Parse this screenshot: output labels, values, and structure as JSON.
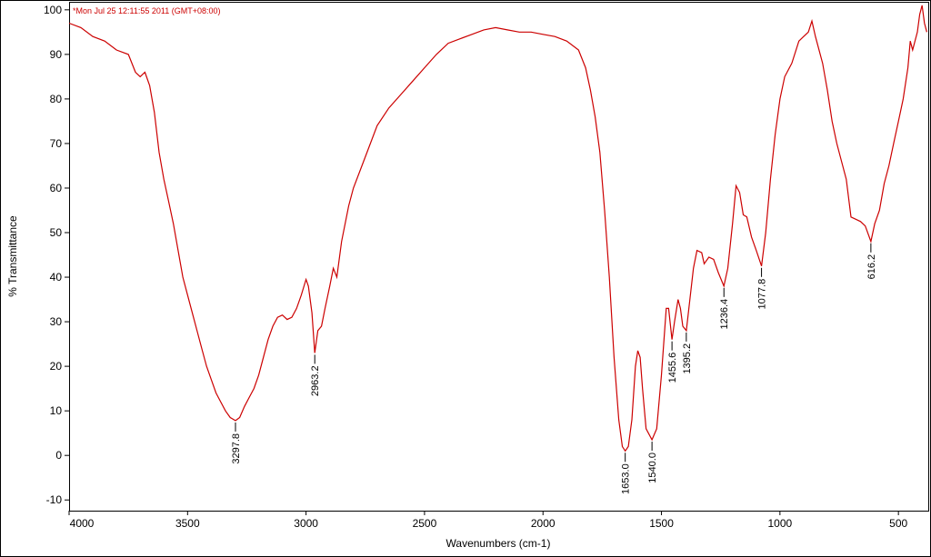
{
  "chart_data": {
    "type": "line",
    "subtitle": "*Mon Jul 25 12:11:55 2011  (GMT+08:00)",
    "x_label": "Wavenumbers (cm-1)",
    "y_label": "% Transmittance",
    "color": "#cc0000",
    "xlim": [
      4000,
      374
    ],
    "ylim": [
      -12.4,
      101.8
    ],
    "xticks": [
      4000,
      3500,
      3000,
      2500,
      2000,
      1500,
      1000,
      500
    ],
    "yticks": [
      -10,
      0,
      10,
      20,
      30,
      40,
      50,
      60,
      70,
      80,
      90,
      100
    ],
    "x": [
      4000,
      3950,
      3900,
      3850,
      3800,
      3750,
      3720,
      3700,
      3680,
      3660,
      3640,
      3620,
      3600,
      3580,
      3560,
      3540,
      3520,
      3500,
      3480,
      3460,
      3440,
      3420,
      3400,
      3380,
      3360,
      3340,
      3320,
      3297.8,
      3280,
      3260,
      3240,
      3220,
      3200,
      3180,
      3160,
      3140,
      3120,
      3100,
      3080,
      3060,
      3040,
      3020,
      3000,
      2990,
      2975,
      2963.2,
      2950,
      2935,
      2920,
      2900,
      2885,
      2870,
      2850,
      2820,
      2800,
      2750,
      2700,
      2650,
      2600,
      2550,
      2500,
      2450,
      2400,
      2350,
      2300,
      2250,
      2200,
      2150,
      2100,
      2050,
      2000,
      1950,
      1900,
      1850,
      1820,
      1800,
      1780,
      1760,
      1740,
      1720,
      1700,
      1680,
      1665,
      1653.0,
      1640,
      1625,
      1610,
      1600,
      1590,
      1580,
      1565,
      1540.0,
      1520,
      1500,
      1480,
      1470,
      1455.6,
      1445,
      1430,
      1420,
      1410,
      1395.2,
      1380,
      1365,
      1350,
      1330,
      1320,
      1300,
      1280,
      1260,
      1236.4,
      1220,
      1200,
      1185,
      1170,
      1155,
      1140,
      1120,
      1100,
      1077.8,
      1060,
      1040,
      1020,
      1000,
      980,
      950,
      920,
      900,
      880,
      865,
      850,
      820,
      800,
      780,
      760,
      740,
      720,
      700,
      680,
      660,
      640,
      616.2,
      600,
      580,
      560,
      540,
      520,
      500,
      480,
      460,
      450,
      440,
      420,
      410,
      400,
      390,
      380
    ],
    "values": [
      97,
      96,
      94,
      93,
      91,
      90,
      86,
      85,
      86,
      83,
      77,
      68,
      62,
      57,
      52,
      46,
      40,
      36,
      32,
      28,
      24,
      20,
      17,
      14,
      12,
      10,
      8.5,
      7.8,
      8.5,
      11,
      13,
      15,
      18,
      22,
      26,
      29,
      31,
      31.5,
      30.5,
      31,
      33,
      36,
      39.5,
      38,
      32,
      23,
      28,
      29,
      33,
      38,
      42,
      40,
      48,
      56,
      60,
      67,
      74,
      78,
      81,
      84,
      87,
      90,
      92.5,
      93.5,
      94.5,
      95.5,
      96,
      95.5,
      95,
      95,
      94.5,
      94,
      93,
      91,
      87,
      82,
      76,
      68,
      55,
      40,
      22,
      8,
      2,
      1,
      2,
      8,
      20,
      23.5,
      22,
      15,
      6,
      3.5,
      6,
      18,
      33,
      33,
      26,
      30,
      35,
      33,
      29,
      28,
      35,
      42,
      46,
      45.5,
      43,
      44.5,
      44,
      41,
      38,
      42,
      52,
      60.5,
      59,
      54,
      53.5,
      49,
      46,
      42.5,
      50,
      62,
      72,
      80,
      85,
      88,
      93,
      94,
      95,
      97.5,
      94,
      88,
      82,
      75,
      70,
      66,
      62,
      53.5,
      53,
      52.5,
      51.5,
      48,
      52,
      55,
      61,
      65,
      70,
      75,
      80,
      87,
      93,
      91,
      95,
      99,
      101,
      97,
      95
    ],
    "peaks": [
      {
        "x": 3297.8,
        "y": 7.8,
        "label": "3297.8"
      },
      {
        "x": 2963.2,
        "y": 23,
        "label": "2963.2"
      },
      {
        "x": 1653.0,
        "y": 1,
        "label": "1653.0"
      },
      {
        "x": 1540.0,
        "y": 3.5,
        "label": "1540.0"
      },
      {
        "x": 1455.6,
        "y": 26,
        "label": "1455.6"
      },
      {
        "x": 1395.2,
        "y": 28,
        "label": "1395.2"
      },
      {
        "x": 1236.4,
        "y": 38,
        "label": "1236.4"
      },
      {
        "x": 1077.8,
        "y": 42.5,
        "label": "1077.8"
      },
      {
        "x": 616.2,
        "y": 48,
        "label": "616.2"
      }
    ]
  }
}
